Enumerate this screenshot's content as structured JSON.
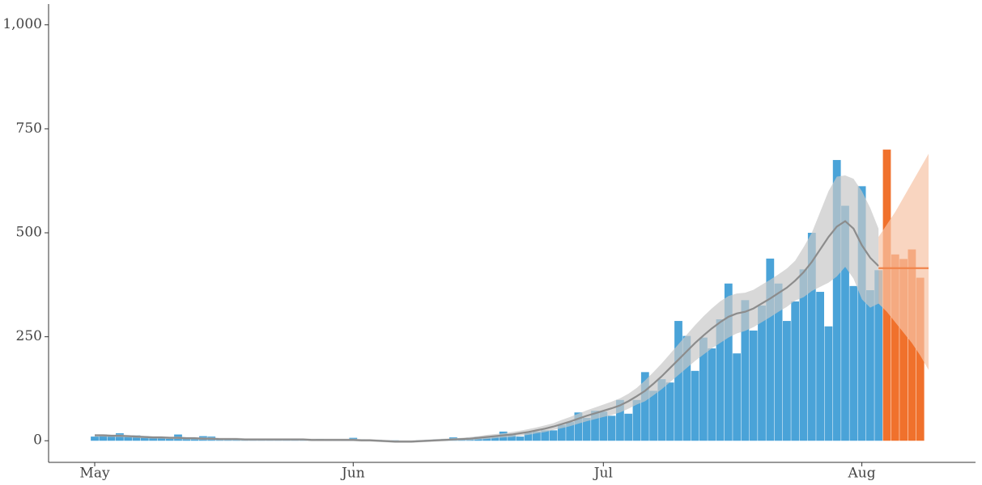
{
  "chart_data": {
    "type": "bar",
    "categories": [
      "May",
      null,
      null,
      null,
      null,
      null,
      null,
      null,
      null,
      null,
      null,
      null,
      null,
      null,
      null,
      null,
      null,
      null,
      null,
      null,
      null,
      null,
      null,
      null,
      null,
      null,
      null,
      null,
      null,
      null,
      null,
      "Jun",
      null,
      null,
      null,
      null,
      null,
      null,
      null,
      null,
      null,
      null,
      null,
      null,
      null,
      null,
      null,
      null,
      null,
      null,
      null,
      null,
      null,
      null,
      null,
      null,
      null,
      null,
      null,
      null,
      null,
      "Jul",
      null,
      null,
      null,
      null,
      null,
      null,
      null,
      null,
      null,
      null,
      null,
      null,
      null,
      null,
      null,
      null,
      null,
      null,
      null,
      null,
      null,
      null,
      null,
      null,
      null,
      null,
      null,
      null,
      null,
      null,
      "Aug",
      null,
      null,
      null,
      null,
      null,
      null,
      null,
      null
    ],
    "series": [
      {
        "color": "#4aa3d8",
        "values": [
          10,
          15,
          14,
          18,
          12,
          13,
          11,
          10,
          9,
          5,
          15,
          5,
          6,
          11,
          10,
          4,
          4,
          4,
          3,
          3,
          3,
          3,
          2,
          2,
          4,
          3,
          3,
          4,
          2,
          3,
          2,
          7,
          3,
          2,
          2,
          1,
          1,
          0,
          0,
          1,
          2,
          3,
          4,
          8,
          6,
          7,
          9,
          10,
          12,
          22,
          14,
          10,
          20,
          22,
          25,
          25,
          38,
          45,
          68,
          55,
          72,
          70,
          60,
          98,
          65,
          98,
          165,
          120,
          148,
          140,
          288,
          252,
          168,
          248,
          222,
          292,
          378,
          210,
          338,
          265,
          325,
          438,
          378,
          288,
          335,
          412,
          500,
          358,
          275,
          675,
          565,
          372,
          612,
          362,
          410,
          null,
          null,
          null,
          null,
          null,
          null
        ]
      },
      {
        "color": "#f0712c",
        "values": [
          null,
          null,
          null,
          null,
          null,
          null,
          null,
          null,
          null,
          null,
          null,
          null,
          null,
          null,
          null,
          null,
          null,
          null,
          null,
          null,
          null,
          null,
          null,
          null,
          null,
          null,
          null,
          null,
          null,
          null,
          null,
          null,
          null,
          null,
          null,
          null,
          null,
          null,
          null,
          null,
          null,
          null,
          null,
          null,
          null,
          null,
          null,
          null,
          null,
          null,
          null,
          null,
          null,
          null,
          null,
          null,
          null,
          null,
          null,
          null,
          null,
          null,
          null,
          null,
          null,
          null,
          null,
          null,
          null,
          null,
          null,
          null,
          null,
          null,
          null,
          null,
          null,
          null,
          null,
          null,
          null,
          null,
          null,
          null,
          null,
          null,
          null,
          null,
          null,
          null,
          null,
          null,
          null,
          null,
          null,
          700,
          448,
          437,
          460,
          392,
          null
        ]
      }
    ],
    "trends": [
      {
        "color": "#8c8c8c",
        "band_color": "#c8c8c8",
        "values": [
          13,
          13,
          12,
          12,
          11,
          10,
          9,
          8,
          8,
          7,
          7,
          6,
          6,
          5,
          5,
          4,
          4,
          4,
          3,
          3,
          3,
          3,
          3,
          3,
          3,
          3,
          2,
          2,
          2,
          2,
          2,
          2,
          1,
          1,
          0,
          -1,
          -2,
          -2,
          -2,
          -1,
          0,
          1,
          2,
          3,
          4,
          5,
          7,
          9,
          11,
          13,
          15,
          18,
          21,
          25,
          29,
          34,
          40,
          46,
          53,
          60,
          66,
          72,
          78,
          85,
          95,
          107,
          120,
          137,
          155,
          175,
          195,
          215,
          235,
          253,
          270,
          285,
          298,
          306,
          310,
          318,
          330,
          342,
          355,
          368,
          385,
          405,
          430,
          460,
          490,
          515,
          528,
          510,
          470,
          440,
          420,
          null,
          null,
          null,
          null,
          null,
          null
        ],
        "upper": [
          16,
          16,
          15,
          15,
          14,
          13,
          12,
          11,
          11,
          10,
          10,
          9,
          9,
          8,
          8,
          7,
          7,
          7,
          6,
          6,
          6,
          6,
          6,
          6,
          6,
          6,
          5,
          5,
          5,
          5,
          5,
          5,
          4,
          4,
          3,
          2,
          1,
          1,
          1,
          2,
          3,
          4,
          5,
          6,
          7,
          9,
          11,
          14,
          16,
          18,
          21,
          24,
          28,
          32,
          37,
          42,
          50,
          57,
          65,
          73,
          80,
          87,
          94,
          102,
          113,
          127,
          145,
          165,
          186,
          209,
          232,
          255,
          278,
          299,
          318,
          335,
          348,
          354,
          356,
          363,
          375,
          387,
          400,
          414,
          433,
          465,
          500,
          550,
          600,
          635,
          638,
          630,
          600,
          560,
          510,
          null,
          null,
          null,
          null,
          null,
          null
        ],
        "lower": [
          10,
          10,
          9,
          9,
          8,
          7,
          6,
          5,
          5,
          4,
          4,
          3,
          3,
          2,
          2,
          1,
          1,
          1,
          0,
          0,
          0,
          0,
          0,
          0,
          0,
          0,
          -1,
          -1,
          -1,
          -1,
          -1,
          -1,
          -2,
          -2,
          -3,
          -4,
          -5,
          -5,
          -5,
          -4,
          -3,
          -2,
          -1,
          0,
          1,
          1,
          3,
          4,
          6,
          8,
          9,
          12,
          14,
          18,
          21,
          26,
          30,
          35,
          41,
          47,
          52,
          57,
          62,
          68,
          77,
          87,
          95,
          109,
          124,
          141,
          158,
          175,
          192,
          207,
          222,
          235,
          248,
          258,
          264,
          273,
          285,
          297,
          310,
          322,
          337,
          345,
          360,
          370,
          380,
          395,
          418,
          390,
          340,
          320,
          330,
          null,
          null,
          null,
          null,
          null,
          null
        ]
      },
      {
        "color": "#f0844c",
        "band_color": "#f7c3a5",
        "values": [
          null,
          null,
          null,
          null,
          null,
          null,
          null,
          null,
          null,
          null,
          null,
          null,
          null,
          null,
          null,
          null,
          null,
          null,
          null,
          null,
          null,
          null,
          null,
          null,
          null,
          null,
          null,
          null,
          null,
          null,
          null,
          null,
          null,
          null,
          null,
          null,
          null,
          null,
          null,
          null,
          null,
          null,
          null,
          null,
          null,
          null,
          null,
          null,
          null,
          null,
          null,
          null,
          null,
          null,
          null,
          null,
          null,
          null,
          null,
          null,
          null,
          null,
          null,
          null,
          null,
          null,
          null,
          null,
          null,
          null,
          null,
          null,
          null,
          null,
          null,
          null,
          null,
          null,
          null,
          null,
          null,
          null,
          null,
          null,
          null,
          null,
          null,
          null,
          null,
          null,
          null,
          null,
          null,
          null,
          415,
          415,
          415,
          415,
          415,
          415,
          415
        ],
        "upper": [
          null,
          null,
          null,
          null,
          null,
          null,
          null,
          null,
          null,
          null,
          null,
          null,
          null,
          null,
          null,
          null,
          null,
          null,
          null,
          null,
          null,
          null,
          null,
          null,
          null,
          null,
          null,
          null,
          null,
          null,
          null,
          null,
          null,
          null,
          null,
          null,
          null,
          null,
          null,
          null,
          null,
          null,
          null,
          null,
          null,
          null,
          null,
          null,
          null,
          null,
          null,
          null,
          null,
          null,
          null,
          null,
          null,
          null,
          null,
          null,
          null,
          null,
          null,
          null,
          null,
          null,
          null,
          null,
          null,
          null,
          null,
          null,
          null,
          null,
          null,
          null,
          null,
          null,
          null,
          null,
          null,
          null,
          null,
          null,
          null,
          null,
          null,
          null,
          null,
          null,
          null,
          null,
          null,
          null,
          490,
          520,
          550,
          585,
          620,
          655,
          690
        ],
        "lower": [
          null,
          null,
          null,
          null,
          null,
          null,
          null,
          null,
          null,
          null,
          null,
          null,
          null,
          null,
          null,
          null,
          null,
          null,
          null,
          null,
          null,
          null,
          null,
          null,
          null,
          null,
          null,
          null,
          null,
          null,
          null,
          null,
          null,
          null,
          null,
          null,
          null,
          null,
          null,
          null,
          null,
          null,
          null,
          null,
          null,
          null,
          null,
          null,
          null,
          null,
          null,
          null,
          null,
          null,
          null,
          null,
          null,
          null,
          null,
          null,
          null,
          null,
          null,
          null,
          null,
          null,
          null,
          null,
          null,
          null,
          null,
          null,
          null,
          null,
          null,
          null,
          null,
          null,
          null,
          null,
          null,
          null,
          null,
          null,
          null,
          null,
          null,
          null,
          null,
          null,
          null,
          null,
          null,
          null,
          330,
          310,
          285,
          260,
          235,
          205,
          170
        ]
      }
    ],
    "ylim": [
      -52,
      1050
    ],
    "yticks": [
      0,
      250,
      500,
      750,
      {
        "value": 1000,
        "label": "1,000"
      }
    ]
  }
}
